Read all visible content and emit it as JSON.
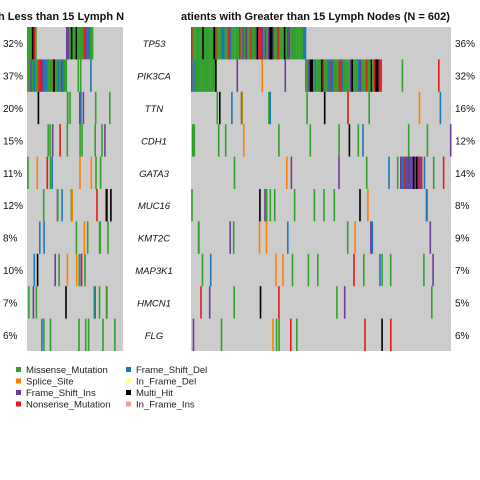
{
  "chart_data": {
    "type": "heatmap",
    "panels": [
      {
        "title": "h Less than 15 Lymph N",
        "percentages": [
          "32%",
          "37%",
          "20%",
          "15%",
          "11%",
          "12%",
          "8%",
          "10%",
          "7%",
          "6%"
        ]
      },
      {
        "title": "atients with Greater than 15 Lymph Nodes (N = 602)",
        "percentages": [
          "36%",
          "32%",
          "16%",
          "12%",
          "14%",
          "8%",
          "9%",
          "7%",
          "5%",
          "6%"
        ]
      }
    ],
    "genes": [
      "TP53",
      "PIK3CA",
      "TTN",
      "CDH1",
      "GATA3",
      "MUC16",
      "KMT2C",
      "MAP3K1",
      "HMCN1",
      "FLG"
    ],
    "legend": [
      {
        "label": "Missense_Mutation",
        "color": "#33a02c"
      },
      {
        "label": "Frame_Shift_Del",
        "color": "#1f78b4"
      },
      {
        "label": "Splice_Site",
        "color": "#ff7f00"
      },
      {
        "label": "In_Frame_Del",
        "color": "#ffff99"
      },
      {
        "label": "Frame_Shift_Ins",
        "color": "#6a3d9a"
      },
      {
        "label": "Multi_Hit",
        "color": "#000000"
      },
      {
        "label": "Nonsense_Mutation",
        "color": "#e31a1c"
      },
      {
        "label": "In_Frame_Ins",
        "color": "#fb9a99"
      }
    ],
    "background_color": "#cccccc"
  }
}
